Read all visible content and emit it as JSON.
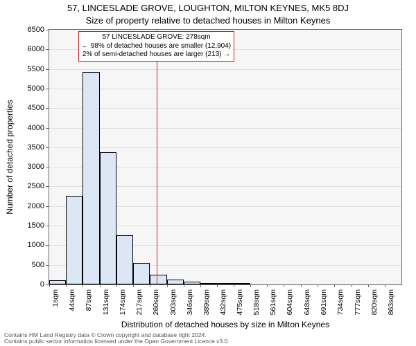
{
  "chart": {
    "type": "histogram",
    "title_line1": "57, LINCESLADE GROVE, LOUGHTON, MILTON KEYNES, MK5 8DJ",
    "title_line2": "Size of property relative to detached houses in Milton Keynes",
    "x_axis_label": "Distribution of detached houses by size in Milton Keynes",
    "y_axis_label": "Number of detached properties",
    "background_color": "#f6f6f6",
    "bar_fill": "#dce7f5",
    "bar_border": "#000000",
    "grid_color": "#e0e0e0",
    "marker_color": "#cc2222",
    "annotation_border": "#cc2222",
    "ylim": [
      0,
      6500
    ],
    "ytick_step": 500,
    "x_tick_labels": [
      "1sqm",
      "44sqm",
      "87sqm",
      "131sqm",
      "174sqm",
      "217sqm",
      "260sqm",
      "303sqm",
      "346sqm",
      "389sqm",
      "432sqm",
      "475sqm",
      "518sqm",
      "561sqm",
      "604sqm",
      "648sqm",
      "691sqm",
      "734sqm",
      "777sqm",
      "820sqm",
      "863sqm"
    ],
    "bin_edges_x": [
      1,
      44,
      87,
      131,
      174,
      217,
      260,
      303,
      346,
      389,
      432,
      475,
      518,
      561,
      604,
      648,
      691,
      734,
      777,
      820,
      863,
      906
    ],
    "bar_values": [
      100,
      2260,
      5420,
      3370,
      1260,
      550,
      250,
      130,
      70,
      40,
      40,
      30,
      0,
      0,
      0,
      0,
      0,
      0,
      0,
      0,
      0
    ],
    "marker_x": 278,
    "annotation": {
      "line1": "57 LINCESLADE GROVE: 278sqm",
      "line2": "← 98% of detached houses are smaller (12,904)",
      "line3": "2% of semi-detached houses are larger (213) →"
    },
    "footer_line1": "Contains HM Land Registry data © Crown copyright and database right 2024.",
    "footer_line2": "Contains public sector information licensed under the Open Government Licence v3.0."
  }
}
